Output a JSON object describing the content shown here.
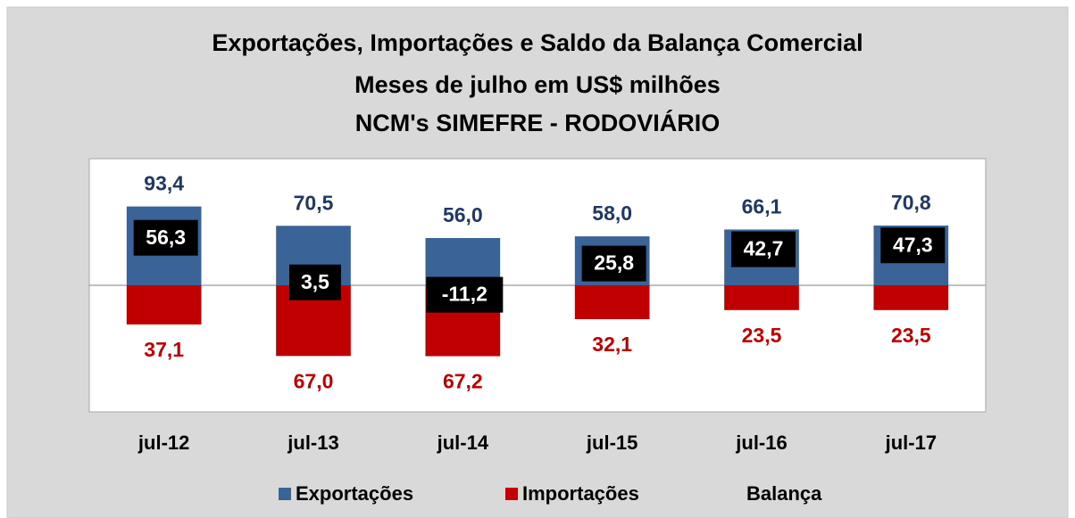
{
  "chart_data": {
    "type": "bar",
    "title": [
      "Exportações, Importações e Saldo da Balança Comercial",
      "Meses de julho em US$ milhões",
      "NCM's SIMEFRE - RODOVIÁRIO"
    ],
    "categories": [
      "jul-12",
      "jul-13",
      "jul-14",
      "jul-15",
      "jul-16",
      "jul-17"
    ],
    "ylim": [
      -150,
      150
    ],
    "y2lim": [
      120,
      -120
    ],
    "series": [
      {
        "name": "Exportações",
        "type": "bar",
        "color": "#3a6498",
        "label_color": "#1f3864",
        "values": [
          93.4,
          70.5,
          56.0,
          58.0,
          66.1,
          70.8
        ],
        "value_labels": [
          "93,4",
          "70,5",
          "56,0",
          "58,0",
          "66,1",
          "70,8"
        ]
      },
      {
        "name": "Importações",
        "type": "bar",
        "axis": "y2",
        "color": "#c00000",
        "label_color": "#c00000",
        "values": [
          37.1,
          67.0,
          67.2,
          32.1,
          23.5,
          23.5
        ],
        "value_labels": [
          "37,1",
          "67,0",
          "67,2",
          "32,1",
          "23,5",
          "23,5"
        ]
      },
      {
        "name": "Balança",
        "type": "label",
        "color": "#000000",
        "label_color": "#ffffff",
        "values": [
          56.3,
          3.5,
          -11.2,
          25.8,
          42.7,
          47.3
        ],
        "value_labels": [
          "56,3",
          "3,5",
          "-11,2",
          "25,8",
          "42,7",
          "47,3"
        ]
      }
    ]
  }
}
